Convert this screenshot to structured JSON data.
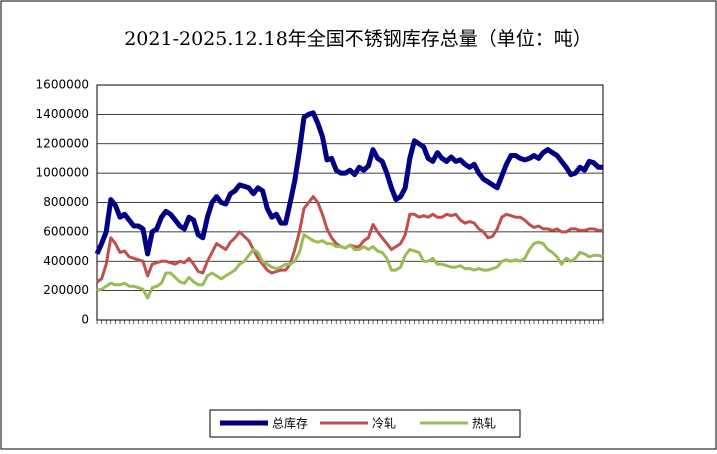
{
  "chart_data": {
    "type": "line",
    "title": "2021-2025.12.18年全国不锈钢库存总量（单位：吨）",
    "categories": [
      null,
      null,
      null,
      null,
      null,
      null,
      null,
      null,
      null,
      null,
      null,
      null,
      null,
      null,
      null,
      null,
      null,
      null,
      null,
      null,
      null,
      null,
      null,
      null,
      null,
      null,
      null,
      null,
      null,
      null,
      null,
      null,
      null,
      null,
      null,
      null,
      null,
      null,
      null,
      null,
      null,
      null,
      null,
      null,
      null,
      null,
      null,
      null,
      null,
      null,
      null,
      null,
      null,
      null,
      null,
      null,
      null,
      null,
      null,
      null,
      null,
      null,
      null,
      null,
      null,
      null,
      null,
      null,
      null,
      null,
      null,
      null,
      null,
      null,
      null,
      null,
      null,
      null,
      null,
      null,
      null,
      null,
      null,
      null,
      null,
      null,
      null,
      null,
      null,
      null,
      null,
      null,
      null,
      null,
      null,
      null,
      null,
      null,
      null,
      null,
      null,
      null,
      null,
      null,
      null,
      null,
      null,
      null,
      null,
      null,
      null
    ],
    "series": [
      {
        "name": "总库存",
        "color": "#000080",
        "values": [
          450000,
          520000,
          600000,
          820000,
          780000,
          700000,
          720000,
          680000,
          640000,
          640000,
          620000,
          450000,
          600000,
          620000,
          700000,
          740000,
          720000,
          680000,
          640000,
          620000,
          700000,
          680000,
          580000,
          560000,
          700000,
          800000,
          840000,
          800000,
          790000,
          860000,
          880000,
          920000,
          910000,
          900000,
          860000,
          900000,
          880000,
          760000,
          700000,
          720000,
          660000,
          660000,
          800000,
          950000,
          1150000,
          1380000,
          1400000,
          1410000,
          1340000,
          1250000,
          1090000,
          1100000,
          1020000,
          1000000,
          1000000,
          1020000,
          990000,
          1040000,
          1020000,
          1050000,
          1160000,
          1100000,
          1080000,
          1000000,
          900000,
          820000,
          840000,
          900000,
          1100000,
          1220000,
          1200000,
          1180000,
          1100000,
          1080000,
          1140000,
          1100000,
          1080000,
          1110000,
          1080000,
          1090000,
          1060000,
          1040000,
          1060000,
          1000000,
          960000,
          940000,
          920000,
          900000,
          980000,
          1060000,
          1120000,
          1120000,
          1100000,
          1090000,
          1100000,
          1120000,
          1100000,
          1140000,
          1160000,
          1140000,
          1120000,
          1080000,
          1040000,
          990000,
          1000000,
          1040000,
          1020000,
          1080000,
          1070000,
          1040000,
          1040000
        ]
      },
      {
        "name": "冷轧",
        "color": "#c0504d",
        "values": [
          260000,
          280000,
          380000,
          560000,
          520000,
          460000,
          470000,
          430000,
          420000,
          410000,
          400000,
          300000,
          380000,
          390000,
          400000,
          400000,
          390000,
          380000,
          400000,
          390000,
          420000,
          380000,
          330000,
          320000,
          400000,
          460000,
          520000,
          500000,
          480000,
          530000,
          560000,
          600000,
          570000,
          540000,
          480000,
          420000,
          380000,
          340000,
          320000,
          330000,
          340000,
          340000,
          380000,
          480000,
          600000,
          760000,
          800000,
          840000,
          800000,
          720000,
          620000,
          560000,
          520000,
          500000,
          490000,
          510000,
          500000,
          500000,
          540000,
          560000,
          650000,
          600000,
          560000,
          520000,
          480000,
          500000,
          520000,
          580000,
          720000,
          720000,
          700000,
          710000,
          700000,
          720000,
          700000,
          700000,
          720000,
          710000,
          720000,
          680000,
          660000,
          670000,
          660000,
          620000,
          600000,
          560000,
          570000,
          620000,
          700000,
          720000,
          710000,
          700000,
          700000,
          680000,
          650000,
          630000,
          640000,
          620000,
          620000,
          610000,
          620000,
          600000,
          600000,
          620000,
          620000,
          610000,
          610000,
          620000,
          620000,
          610000,
          610000
        ]
      },
      {
        "name": "热轧",
        "color": "#9bbb59",
        "values": [
          200000,
          210000,
          230000,
          250000,
          240000,
          240000,
          250000,
          230000,
          230000,
          220000,
          210000,
          150000,
          220000,
          230000,
          250000,
          320000,
          320000,
          290000,
          260000,
          250000,
          290000,
          260000,
          240000,
          240000,
          300000,
          320000,
          300000,
          280000,
          300000,
          320000,
          340000,
          380000,
          400000,
          440000,
          480000,
          460000,
          400000,
          380000,
          360000,
          350000,
          360000,
          380000,
          380000,
          400000,
          460000,
          580000,
          560000,
          540000,
          530000,
          540000,
          520000,
          520000,
          500000,
          500000,
          490000,
          510000,
          480000,
          480000,
          500000,
          480000,
          500000,
          470000,
          460000,
          420000,
          340000,
          340000,
          360000,
          440000,
          480000,
          470000,
          460000,
          400000,
          400000,
          420000,
          380000,
          380000,
          370000,
          360000,
          360000,
          370000,
          350000,
          350000,
          340000,
          350000,
          340000,
          340000,
          350000,
          360000,
          400000,
          410000,
          400000,
          410000,
          400000,
          420000,
          480000,
          520000,
          530000,
          520000,
          480000,
          460000,
          430000,
          380000,
          420000,
          400000,
          420000,
          460000,
          450000,
          430000,
          440000,
          440000,
          430000
        ]
      }
    ],
    "ylim": [
      0,
      1600000
    ],
    "yticks": [
      0,
      200000,
      400000,
      600000,
      800000,
      1000000,
      1200000,
      1400000,
      1600000
    ],
    "grid": true,
    "legend": "bottom"
  }
}
